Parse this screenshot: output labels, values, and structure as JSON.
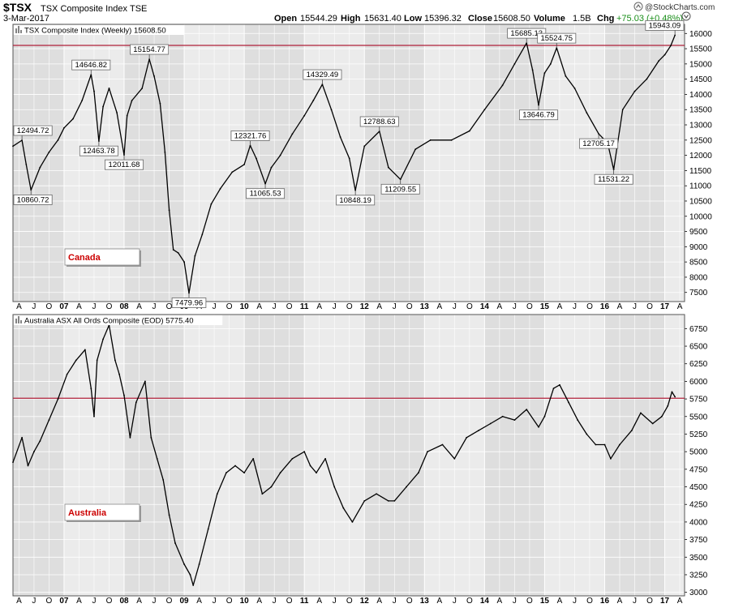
{
  "header": {
    "symbol": "$TSX",
    "name": "TSX Composite Index",
    "exchange": "TSE",
    "date": "3-Mar-2017",
    "open_label": "Open",
    "open": "15544.29",
    "high_label": "High",
    "high": "15631.40",
    "low_label": "Low",
    "low": "15396.32",
    "close_label": "Close",
    "close": "15608.50",
    "volume_label": "Volume",
    "volume": "1.5B",
    "chg_label": "Chg",
    "chg": "+75.03 (+0.48%)",
    "chg_color": "#1a8f1a",
    "logo": "@StockCharts.com",
    "logo_icon": "up-arrow-icon"
  },
  "chart_data": [
    {
      "type": "line",
      "panel_title": "TSX Composite Index (Weekly) 15608.50",
      "box_label": "Canada",
      "box_label_color": "#cc0000",
      "ylim": [
        7200,
        16300
      ],
      "yticks": [
        7500,
        8000,
        8500,
        9000,
        9500,
        10000,
        10500,
        11000,
        11500,
        12000,
        12500,
        13000,
        13500,
        14000,
        14500,
        15000,
        15500,
        16000
      ],
      "hline": 15608.5,
      "hline_color": "#b0203a",
      "xlim": [
        2006.15,
        2017.33
      ],
      "x_axis_labels": [
        "A",
        "J",
        "O",
        "07",
        "A",
        "J",
        "O",
        "08",
        "A",
        "J",
        "O",
        "09",
        "A",
        "J",
        "O",
        "10",
        "A",
        "J",
        "O",
        "11",
        "A",
        "J",
        "O",
        "12",
        "A",
        "J",
        "O",
        "13",
        "A",
        "J",
        "O",
        "14",
        "A",
        "J",
        "O",
        "15",
        "A",
        "J",
        "O",
        "16",
        "A",
        "J",
        "O",
        "17",
        "A"
      ],
      "series": [
        {
          "x": [
            2006.15,
            2006.3,
            2006.37,
            2006.45,
            2006.6,
            2006.75,
            2006.9,
            2007.0,
            2007.15,
            2007.3,
            2007.45,
            2007.5,
            2007.58,
            2007.65,
            2007.75,
            2007.88,
            2008.0,
            2008.05,
            2008.13,
            2008.3,
            2008.42,
            2008.5,
            2008.6,
            2008.68,
            2008.75,
            2008.82,
            2008.9,
            2009.0,
            2009.08,
            2009.18,
            2009.3,
            2009.45,
            2009.6,
            2009.8,
            2010.0,
            2010.1,
            2010.2,
            2010.35,
            2010.45,
            2010.6,
            2010.8,
            2011.0,
            2011.15,
            2011.3,
            2011.45,
            2011.6,
            2011.75,
            2011.85,
            2012.0,
            2012.25,
            2012.4,
            2012.6,
            2012.85,
            2013.1,
            2013.45,
            2013.75,
            2014.0,
            2014.3,
            2014.5,
            2014.7,
            2014.8,
            2014.9,
            2015.0,
            2015.1,
            2015.2,
            2015.35,
            2015.5,
            2015.7,
            2015.9,
            2016.05,
            2016.15,
            2016.3,
            2016.5,
            2016.7,
            2016.9,
            2017.0,
            2017.1,
            2017.17
          ],
          "y": [
            12300,
            12494.72,
            11700,
            10860.72,
            11600,
            12100,
            12500,
            12900,
            13200,
            13800,
            14646.82,
            14100,
            12463.78,
            13600,
            14200,
            13400,
            12011.68,
            13300,
            13800,
            14200,
            15154.77,
            14600,
            13700,
            12100,
            10200,
            8900,
            8800,
            8500,
            7479.96,
            8700,
            9400,
            10400,
            10900,
            11450,
            11700,
            12321.76,
            11900,
            11065.53,
            11600,
            12000,
            12700,
            13300,
            13800,
            14329.49,
            13500,
            12600,
            11900,
            10848.19,
            12300,
            12788.63,
            11600,
            11209.55,
            12200,
            12500,
            12500,
            12800,
            13500,
            14300,
            15000,
            15685.13,
            14800,
            13646.79,
            14700,
            15000,
            15524.75,
            14600,
            14200,
            13400,
            12705.17,
            12400,
            11531.22,
            13500,
            14100,
            14500,
            15100,
            15300,
            15600,
            15943.09
          ]
        }
      ],
      "annotations": [
        {
          "x": 2006.3,
          "y": 12494.72,
          "text": "12494.72",
          "pos": "above"
        },
        {
          "x": 2006.45,
          "y": 10860.72,
          "text": "10860.72",
          "pos": "below"
        },
        {
          "x": 2007.45,
          "y": 14646.82,
          "text": "14646.82",
          "pos": "above"
        },
        {
          "x": 2007.58,
          "y": 12463.78,
          "text": "12463.78",
          "pos": "below"
        },
        {
          "x": 2008.0,
          "y": 12011.68,
          "text": "12011.68",
          "pos": "below"
        },
        {
          "x": 2008.42,
          "y": 15154.77,
          "text": "15154.77",
          "pos": "above"
        },
        {
          "x": 2009.08,
          "y": 7479.96,
          "text": "7479.96",
          "pos": "below"
        },
        {
          "x": 2010.1,
          "y": 12321.76,
          "text": "12321.76",
          "pos": "above"
        },
        {
          "x": 2010.35,
          "y": 11065.53,
          "text": "11065.53",
          "pos": "below"
        },
        {
          "x": 2011.3,
          "y": 14329.49,
          "text": "14329.49",
          "pos": "above"
        },
        {
          "x": 2011.85,
          "y": 10848.19,
          "text": "10848.19",
          "pos": "below"
        },
        {
          "x": 2012.25,
          "y": 12788.63,
          "text": "12788.63",
          "pos": "above"
        },
        {
          "x": 2012.6,
          "y": 11209.55,
          "text": "11209.55",
          "pos": "below"
        },
        {
          "x": 2014.7,
          "y": 15685.13,
          "text": "15685.13",
          "pos": "above"
        },
        {
          "x": 2014.9,
          "y": 13646.79,
          "text": "13646.79",
          "pos": "below"
        },
        {
          "x": 2015.2,
          "y": 15524.75,
          "text": "15524.75",
          "pos": "above"
        },
        {
          "x": 2015.9,
          "y": 12705.17,
          "text": "12705.17",
          "pos": "below"
        },
        {
          "x": 2016.15,
          "y": 11531.22,
          "text": "11531.22",
          "pos": "below"
        },
        {
          "x": 2017.17,
          "y": 15943.09,
          "text": "15943.09",
          "pos": "above"
        }
      ]
    },
    {
      "type": "line",
      "panel_title": "Australia ASX All Ords Composite (EOD) 5775.40",
      "box_label": "Australia",
      "box_label_color": "#cc0000",
      "ylim": [
        2950,
        6950
      ],
      "yticks": [
        3000,
        3250,
        3500,
        3750,
        4000,
        4250,
        4500,
        4750,
        5000,
        5250,
        5500,
        5750,
        6000,
        6250,
        6500,
        6750
      ],
      "hline": 5760,
      "hline_color": "#b0203a",
      "xlim": [
        2006.15,
        2017.33
      ],
      "x_axis_labels": [
        "A",
        "J",
        "O",
        "07",
        "A",
        "J",
        "O",
        "08",
        "A",
        "J",
        "O",
        "09",
        "A",
        "J",
        "O",
        "10",
        "A",
        "J",
        "O",
        "11",
        "A",
        "J",
        "O",
        "12",
        "A",
        "J",
        "O",
        "13",
        "A",
        "J",
        "O",
        "14",
        "A",
        "J",
        "O",
        "15",
        "A",
        "J",
        "O",
        "16",
        "A",
        "J",
        "O",
        "17",
        "A"
      ],
      "series": [
        {
          "x": [
            2006.15,
            2006.3,
            2006.4,
            2006.5,
            2006.6,
            2006.75,
            2006.9,
            2007.05,
            2007.2,
            2007.35,
            2007.45,
            2007.5,
            2007.55,
            2007.65,
            2007.75,
            2007.85,
            2007.92,
            2008.0,
            2008.1,
            2008.2,
            2008.35,
            2008.45,
            2008.55,
            2008.65,
            2008.75,
            2008.85,
            2009.0,
            2009.1,
            2009.15,
            2009.25,
            2009.4,
            2009.55,
            2009.7,
            2009.85,
            2010.0,
            2010.15,
            2010.3,
            2010.45,
            2010.6,
            2010.8,
            2011.0,
            2011.1,
            2011.2,
            2011.35,
            2011.5,
            2011.65,
            2011.8,
            2012.0,
            2012.2,
            2012.4,
            2012.5,
            2012.7,
            2012.9,
            2013.05,
            2013.3,
            2013.5,
            2013.7,
            2013.9,
            2014.1,
            2014.3,
            2014.5,
            2014.7,
            2014.9,
            2015.0,
            2015.15,
            2015.25,
            2015.4,
            2015.55,
            2015.7,
            2015.85,
            2016.0,
            2016.1,
            2016.25,
            2016.45,
            2016.6,
            2016.8,
            2016.95,
            2017.05,
            2017.12,
            2017.17
          ],
          "y": [
            4850,
            5200,
            4800,
            5000,
            5150,
            5450,
            5750,
            6100,
            6300,
            6450,
            5900,
            5500,
            6300,
            6600,
            6800,
            6300,
            6100,
            5800,
            5200,
            5700,
            6000,
            5200,
            4900,
            4600,
            4100,
            3700,
            3400,
            3250,
            3100,
            3400,
            3900,
            4400,
            4700,
            4800,
            4700,
            4900,
            4400,
            4500,
            4700,
            4900,
            5000,
            4800,
            4700,
            4900,
            4500,
            4200,
            4000,
            4300,
            4400,
            4300,
            4300,
            4500,
            4700,
            5000,
            5100,
            4900,
            5200,
            5300,
            5400,
            5500,
            5450,
            5600,
            5350,
            5500,
            5900,
            5950,
            5700,
            5450,
            5250,
            5100,
            5100,
            4900,
            5100,
            5300,
            5550,
            5400,
            5500,
            5650,
            5850,
            5780
          ]
        }
      ],
      "annotations": []
    }
  ]
}
